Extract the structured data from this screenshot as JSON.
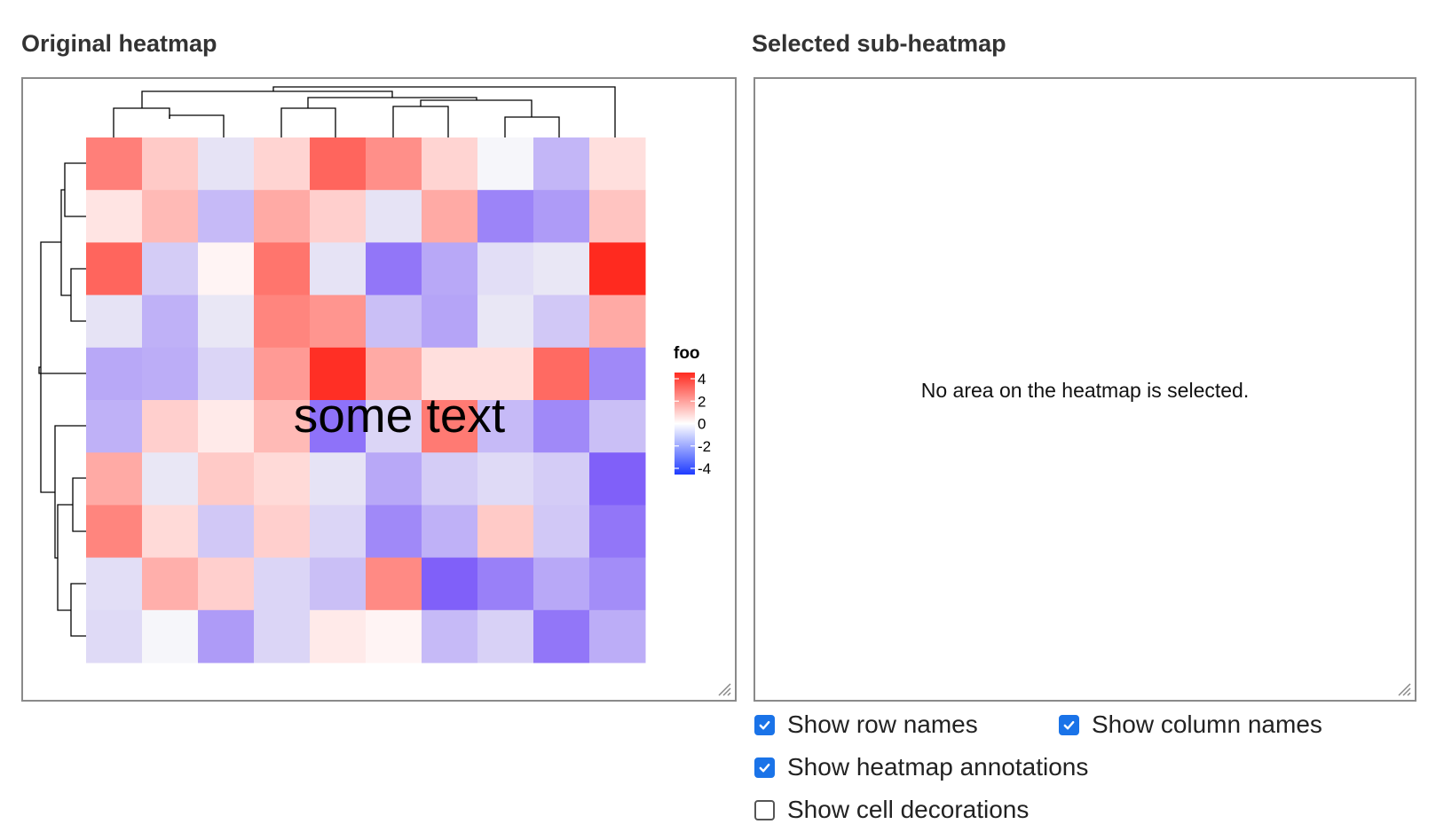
{
  "left_panel": {
    "title": "Original heatmap"
  },
  "right_panel": {
    "title": "Selected sub-heatmap",
    "empty_message": "No area on the heatmap is selected."
  },
  "options": [
    {
      "label": "Show row names",
      "checked": true
    },
    {
      "label": "Show column names",
      "checked": true
    },
    {
      "label": "Show heatmap annotations",
      "checked": true
    },
    {
      "label": "Show cell decorations",
      "checked": false
    }
  ],
  "chart_data": {
    "type": "heatmap",
    "rows": 10,
    "columns": 10,
    "values": [
      [
        2.4,
        1.0,
        -0.3,
        0.8,
        2.9,
        2.1,
        0.8,
        -0.1,
        -1.3,
        0.6
      ],
      [
        0.5,
        1.3,
        -1.2,
        1.6,
        0.9,
        -0.3,
        1.6,
        -2.4,
        -1.9,
        1.1
      ],
      [
        2.9,
        -0.8,
        0.2,
        2.6,
        -0.3,
        -2.7,
        -1.6,
        -0.4,
        -0.2,
        4.0
      ],
      [
        -0.3,
        -1.4,
        -0.2,
        2.3,
        2.0,
        -1.1,
        -1.7,
        -0.2,
        -0.9,
        1.6
      ],
      [
        -1.6,
        -1.5,
        -0.6,
        1.9,
        3.9,
        1.6,
        0.6,
        0.6,
        2.8,
        -2.3
      ],
      [
        -1.4,
        0.9,
        0.4,
        1.3,
        -2.8,
        -0.6,
        2.5,
        -1.2,
        -2.3,
        -1.1
      ],
      [
        1.6,
        -0.2,
        1.0,
        0.7,
        -0.3,
        -1.6,
        -0.8,
        -0.5,
        -0.8,
        -3.2
      ],
      [
        2.3,
        0.7,
        -0.9,
        0.9,
        -0.6,
        -2.3,
        -1.4,
        1.0,
        -0.9,
        -2.7
      ],
      [
        -0.4,
        1.5,
        0.9,
        -0.6,
        -1.1,
        2.2,
        -3.2,
        -2.5,
        -1.6,
        -2.2
      ],
      [
        -0.5,
        -0.1,
        -1.9,
        -0.6,
        0.4,
        0.2,
        -1.2,
        -0.7,
        -2.7,
        -1.5
      ]
    ],
    "legend": {
      "title": "foo",
      "ticks": [
        "4",
        "2",
        "0",
        "-2",
        "-4"
      ],
      "range": [
        -4,
        4
      ]
    },
    "colors": {
      "low": "#0000ff",
      "mid": "#ffffff",
      "high": "#ff0000"
    },
    "row_dendrogram": true,
    "column_dendrogram": true,
    "annotation": "some text"
  }
}
